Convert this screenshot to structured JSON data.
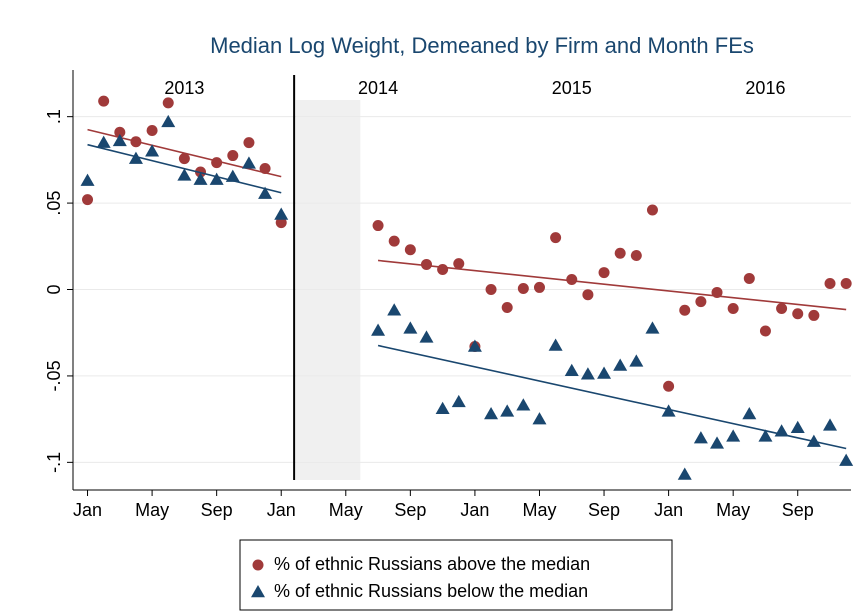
{
  "chart_data": {
    "type": "scatter",
    "title": "Median Log Weight, Demeaned by Firm and Month FEs",
    "x": [
      0,
      1,
      2,
      3,
      4,
      5,
      6,
      7,
      8,
      9,
      10,
      11,
      12,
      18,
      19,
      20,
      21,
      22,
      23,
      24,
      25,
      26,
      27,
      28,
      29,
      30,
      31,
      32,
      33,
      34,
      35,
      36,
      37,
      38,
      39,
      40,
      41,
      42,
      43,
      44,
      45,
      46,
      47
    ],
    "series": [
      {
        "name": "% of ethnic Russians above the median",
        "color": "#a03a3a",
        "marker": "circle",
        "values": [
          0.052,
          0.109,
          0.091,
          0.0855,
          0.092,
          0.108,
          0.0757,
          0.068,
          0.0734,
          0.0775,
          0.085,
          0.07,
          0.0387,
          0.037,
          0.028,
          0.023,
          0.0145,
          0.0116,
          0.015,
          -0.033,
          0,
          -0.0104,
          0.0006,
          0.0012,
          0.03,
          0.0058,
          -0.003,
          0.0098,
          0.021,
          0.0197,
          0.046,
          -0.056,
          -0.012,
          -0.007,
          -0.0017,
          -0.011,
          0.0064,
          -0.024,
          -0.011,
          -0.014,
          -0.015,
          0.0035,
          0.0035
        ],
        "fits": [
          {
            "x": [
              0,
              12
            ],
            "y": [
              0.0925,
              0.0653
            ]
          },
          {
            "x": [
              18,
              47
            ],
            "y": [
              0.0168,
              -0.0116
            ]
          }
        ]
      },
      {
        "name": "% of ethnic Russians below the median",
        "color": "#1a476f",
        "marker": "triangle",
        "values": [
          0.063,
          0.085,
          0.086,
          0.0757,
          0.08,
          0.097,
          0.066,
          0.0636,
          0.0636,
          0.0653,
          0.073,
          0.0555,
          0.0434,
          -0.0237,
          -0.012,
          -0.0225,
          -0.0277,
          -0.069,
          -0.065,
          -0.033,
          -0.072,
          -0.0705,
          -0.067,
          -0.075,
          -0.0324,
          -0.047,
          -0.049,
          -0.0486,
          -0.044,
          -0.0416,
          -0.0225,
          -0.0705,
          -0.107,
          -0.086,
          -0.089,
          -0.085,
          -0.072,
          -0.085,
          -0.082,
          -0.08,
          -0.088,
          -0.0786,
          -0.099
        ],
        "fits": [
          {
            "x": [
              0,
              12
            ],
            "y": [
              0.0838,
              0.056
            ]
          },
          {
            "x": [
              18,
              47
            ],
            "y": [
              -0.0324,
              -0.092
            ]
          }
        ]
      }
    ],
    "xlim": [
      -0.9,
      47.3
    ],
    "ylim": [
      -0.116,
      0.127
    ],
    "xticks": [
      {
        "value": 0,
        "label": "Jan"
      },
      {
        "value": 4,
        "label": "May"
      },
      {
        "value": 8,
        "label": "Sep"
      },
      {
        "value": 12,
        "label": "Jan"
      },
      {
        "value": 16,
        "label": "May"
      },
      {
        "value": 20,
        "label": "Sep"
      },
      {
        "value": 24,
        "label": "Jan"
      },
      {
        "value": 28,
        "label": "May"
      },
      {
        "value": 32,
        "label": "Sep"
      },
      {
        "value": 36,
        "label": "Jan"
      },
      {
        "value": 40,
        "label": "May"
      },
      {
        "value": 44,
        "label": "Sep"
      }
    ],
    "yticks": [
      {
        "value": -0.1,
        "label": "-.1"
      },
      {
        "value": -0.05,
        "label": "-.05"
      },
      0,
      {
        "value": 0.05,
        "label": ".05"
      },
      {
        "value": 0.1,
        "label": ".1"
      }
    ],
    "grid": true,
    "annotations": [
      {
        "text": "2013",
        "x": 6,
        "y": 0.116
      },
      {
        "text": "2014",
        "x": 18,
        "y": 0.116
      },
      {
        "text": "2015",
        "x": 30,
        "y": 0.116
      },
      {
        "text": "2016",
        "x": 42,
        "y": 0.116
      }
    ],
    "vline": 12.8,
    "shaded_region": [
      12.9,
      16.9
    ]
  }
}
